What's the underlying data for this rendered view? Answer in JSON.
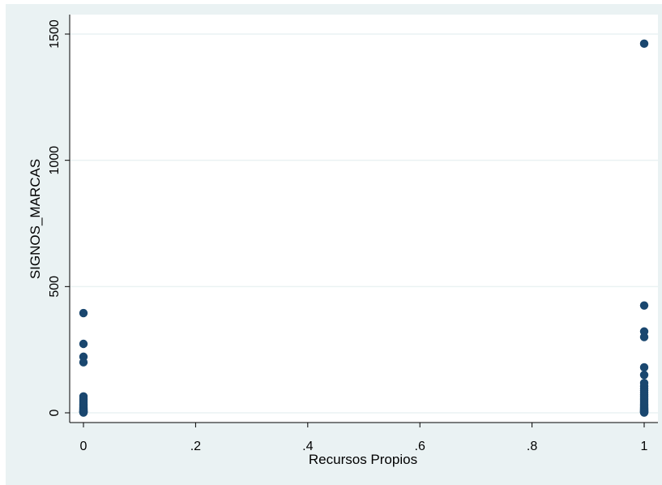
{
  "chart_data": {
    "type": "scatter",
    "title": "",
    "xlabel": "Recursos Propios",
    "ylabel": "SIGNOS_MARCAS",
    "xlim": [
      0,
      1
    ],
    "ylim": [
      0,
      1500
    ],
    "x_ticks": [
      0,
      0.2,
      0.4,
      0.6,
      0.8,
      1
    ],
    "x_tick_labels": [
      "0",
      ".2",
      ".4",
      ".6",
      ".8",
      "1"
    ],
    "y_ticks": [
      0,
      500,
      1000,
      1500
    ],
    "y_tick_labels": [
      "0",
      "500",
      "1000",
      "1500"
    ],
    "grid": "horizontal",
    "marker_color": "#1a476f",
    "background_color": "#eaf2f3",
    "series": [
      {
        "x": [
          0,
          0,
          0,
          0,
          0,
          0,
          0,
          0,
          0,
          0,
          0,
          0,
          0,
          0,
          0,
          0,
          0,
          0,
          0,
          0,
          0,
          0,
          0,
          0,
          1,
          1,
          1,
          1,
          1,
          1,
          1,
          1,
          1,
          1,
          1,
          1,
          1,
          1,
          1,
          1,
          1,
          1,
          1,
          1,
          1,
          1,
          1,
          1,
          1,
          1,
          1,
          1,
          1,
          1
        ],
        "y": [
          395,
          273,
          222,
          200,
          65,
          58,
          52,
          46,
          40,
          35,
          30,
          26,
          22,
          18,
          15,
          12,
          10,
          8,
          6,
          5,
          4,
          3,
          2,
          1,
          1462,
          425,
          322,
          300,
          180,
          150,
          118,
          105,
          96,
          88,
          80,
          72,
          65,
          58,
          52,
          46,
          40,
          35,
          30,
          26,
          22,
          18,
          15,
          12,
          10,
          8,
          6,
          4,
          2,
          1
        ]
      }
    ]
  }
}
